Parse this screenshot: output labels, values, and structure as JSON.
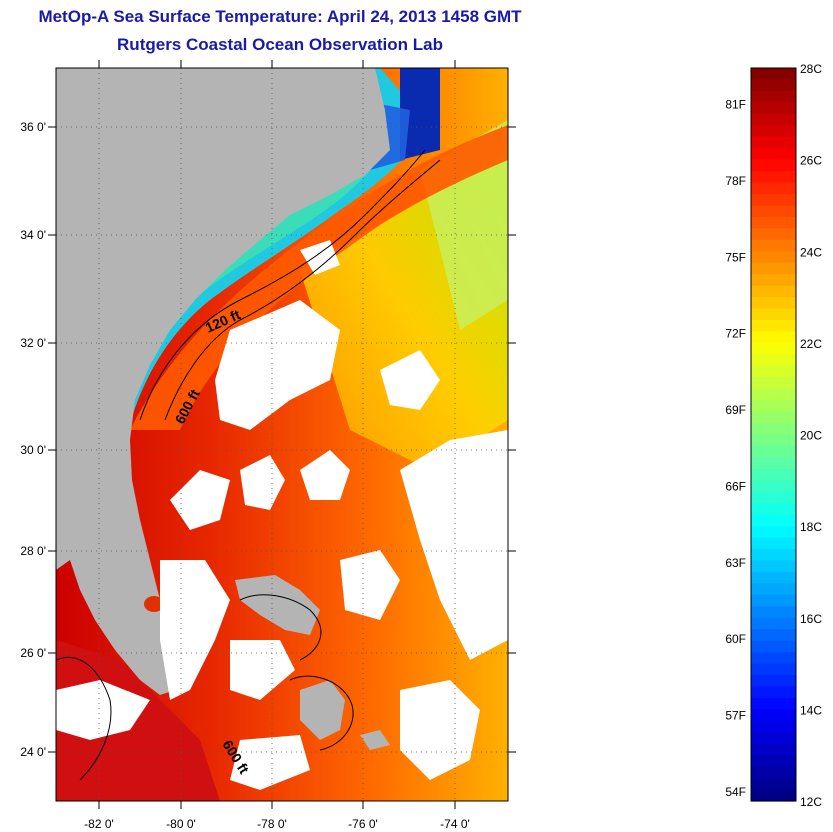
{
  "title_line1": "MetOp-A Sea Surface Temperature:  April 24, 2013 1458 GMT",
  "title_line2": "Rutgers Coastal Ocean Observation Lab",
  "longitude_labels": [
    "-82 0'",
    "-80 0'",
    "-78 0'",
    "-76 0'",
    "-74 0'"
  ],
  "latitude_labels": [
    "36 0'",
    "34 0'",
    "32 0'",
    "30 0'",
    "28 0'",
    "26 0'",
    "24 0'"
  ],
  "contour_labels": {
    "c120": "120 ft",
    "c600": "600 ft",
    "c600b": "600 ft"
  },
  "colorbar": {
    "celsius_labels": [
      "28C",
      "26C",
      "24C",
      "22C",
      "20C",
      "18C",
      "16C",
      "14C",
      "12C"
    ],
    "fahrenheit_labels": [
      "81F",
      "78F",
      "75F",
      "72F",
      "69F",
      "66F",
      "63F",
      "60F",
      "57F",
      "54F"
    ],
    "celsius_min": 12,
    "celsius_max": 28
  },
  "colors": {
    "land": "#b4b4b4",
    "title": "#1a1aa8",
    "cloud": "#ffffff"
  }
}
